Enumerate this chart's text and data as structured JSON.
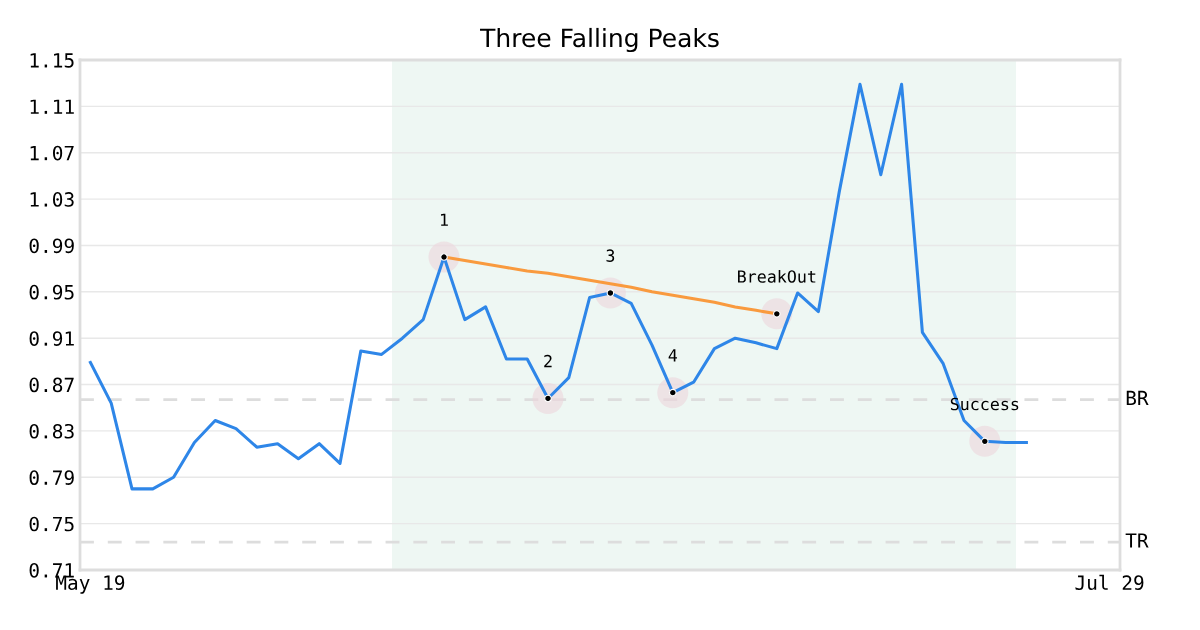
{
  "chart_data": {
    "type": "line",
    "title": "Three Falling Peaks",
    "categories": [
      "May 19",
      null,
      null,
      null,
      null,
      null,
      null,
      null,
      null,
      null,
      null,
      null,
      null,
      null,
      null,
      null,
      null,
      null,
      null,
      null,
      null,
      null,
      null,
      null,
      null,
      null,
      null,
      null,
      null,
      null,
      null,
      null,
      null,
      null,
      null,
      null,
      null,
      null,
      null,
      null,
      null,
      null,
      null,
      null,
      null,
      null,
      null,
      null,
      null,
      "Jul 29"
    ],
    "ylim": [
      0.71,
      1.15
    ],
    "yticks": [
      0.71,
      0.75,
      0.79,
      0.83,
      0.87,
      0.91,
      0.95,
      0.99,
      1.03,
      1.07,
      1.11,
      1.15
    ],
    "grid": "y",
    "legend": false,
    "marker": "none",
    "line_style": "solid",
    "series": [
      {
        "color": "#2e86e8",
        "values": [
          0.889,
          0.854,
          0.78,
          0.78,
          0.79,
          0.82,
          0.839,
          0.832,
          0.816,
          0.819,
          0.806,
          0.819,
          0.802,
          0.899,
          0.896,
          0.91,
          0.926,
          0.98,
          0.926,
          0.937,
          0.892,
          0.892,
          0.858,
          0.876,
          0.945,
          0.949,
          0.94,
          0.904,
          0.863,
          0.872,
          0.901,
          0.91,
          0.906,
          0.901,
          0.949,
          0.933,
          1.036,
          1.129,
          1.051,
          1.129,
          0.915,
          0.888,
          0.839,
          0.821,
          0.82,
          0.82,
          null,
          null,
          null,
          null
        ]
      },
      {
        "type": "line",
        "color": "#f99a3e",
        "values": [
          null,
          null,
          null,
          null,
          null,
          null,
          null,
          null,
          null,
          null,
          null,
          null,
          null,
          null,
          null,
          null,
          null,
          0.98,
          0.977,
          0.974,
          0.971,
          0.968,
          0.966,
          0.963,
          0.96,
          0.957,
          0.954,
          0.95,
          0.947,
          0.944,
          0.941,
          0.937,
          0.934,
          0.931,
          null,
          null,
          null,
          null,
          null,
          null,
          null,
          null,
          null,
          null,
          null,
          null,
          null,
          null,
          null,
          null
        ]
      },
      {
        "type": "scatter",
        "color": "#000000",
        "marker": "circle",
        "values": [
          null,
          null,
          null,
          null,
          null,
          null,
          null,
          null,
          null,
          null,
          null,
          null,
          null,
          null,
          null,
          null,
          null,
          0.98,
          null,
          null,
          null,
          null,
          0.858,
          null,
          null,
          0.949,
          null,
          null,
          0.863,
          null,
          null,
          null,
          null,
          0.931,
          null,
          null,
          null,
          null,
          null,
          null,
          null,
          null,
          null,
          0.821,
          null,
          null,
          null,
          null,
          null,
          null
        ]
      }
    ],
    "annotations": [
      "1",
      "2",
      "3",
      "4",
      "BreakOut",
      "Success"
    ],
    "ref_lines": [
      {
        "axis": "y",
        "value": 0.857,
        "label": "BR",
        "color": "#dddddd",
        "line_style": "dashed"
      },
      {
        "axis": "y",
        "value": 0.734,
        "label": "TR",
        "color": "#dddddd",
        "line_style": "dashed"
      }
    ]
  }
}
